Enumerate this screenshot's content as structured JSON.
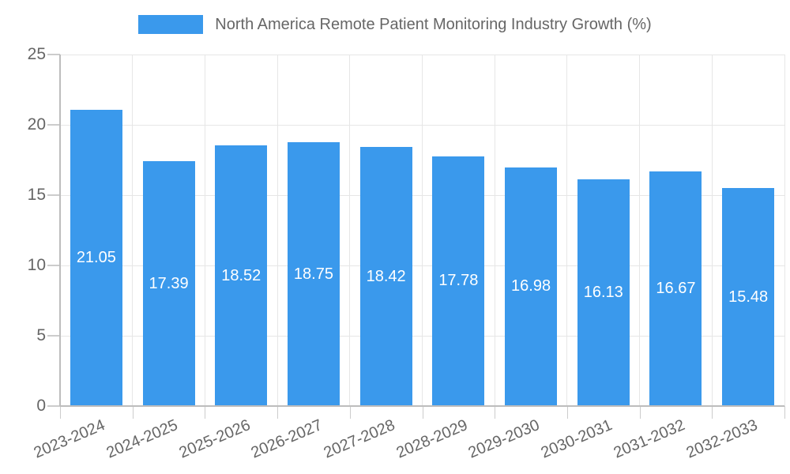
{
  "chart_data": {
    "type": "bar",
    "title": "North America Remote Patient Monitoring Industry Growth (%)",
    "categories": [
      "2023-2024",
      "2024-2025",
      "2025-2026",
      "2026-2027",
      "2027-2028",
      "2028-2029",
      "2029-2030",
      "2030-2031",
      "2031-2032",
      "2032-2033"
    ],
    "values": [
      21.05,
      17.39,
      18.52,
      18.75,
      18.42,
      17.78,
      16.98,
      16.13,
      16.67,
      15.48
    ],
    "value_labels": [
      "21.05",
      "17.39",
      "18.52",
      "18.75",
      "18.42",
      "17.78",
      "16.98",
      "16.13",
      "16.67",
      "15.48"
    ],
    "xlabel": "",
    "ylabel": "",
    "ylim": [
      0,
      25
    ],
    "yticks": [
      0,
      5,
      10,
      15,
      20,
      25
    ],
    "grid": true,
    "legend_position": "top-center"
  },
  "legend": {
    "items": [
      {
        "label": "North America Remote Patient Monitoring Industry Growth (%)",
        "swatch_color": "#3A99EC"
      }
    ]
  },
  "colors": {
    "background": "#FFFFFF",
    "bar": "#3A99EC",
    "bar_value_text": "#FFFFFF",
    "grid": "#E6E6E6",
    "axis": "#BDBDBD",
    "tick": "#CCCCCC",
    "tick_text": "#666666",
    "legend_text": "#666666"
  }
}
